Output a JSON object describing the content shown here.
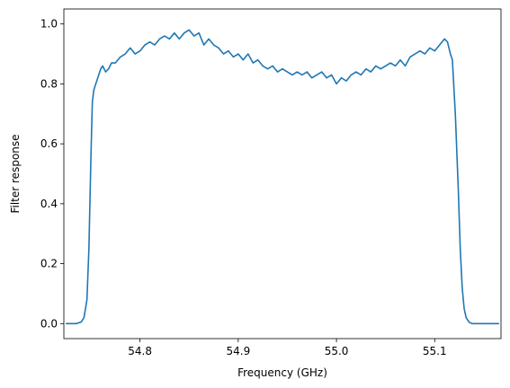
{
  "chart_data": {
    "type": "line",
    "title": "",
    "xlabel": "Frequency (GHz)",
    "ylabel": "Filter response",
    "xlim": [
      54.7225,
      55.1675
    ],
    "ylim": [
      -0.05,
      1.05
    ],
    "xticks": [
      54.8,
      54.9,
      55.0,
      55.1
    ],
    "xtick_labels": [
      "54.8",
      "54.9",
      "55.0",
      "55.1"
    ],
    "yticks": [
      0.0,
      0.2,
      0.4,
      0.6,
      0.8,
      1.0
    ],
    "ytick_labels": [
      "0.0",
      "0.2",
      "0.4",
      "0.6",
      "0.8",
      "1.0"
    ],
    "grid": false,
    "legend": "none",
    "series": [
      {
        "color": "#1f77b4",
        "x": [
          54.725,
          54.735,
          54.74,
          54.743,
          54.746,
          54.748,
          54.75,
          54.7515,
          54.753,
          54.755,
          54.757,
          54.76,
          54.762,
          54.765,
          54.768,
          54.771,
          54.775,
          54.78,
          54.785,
          54.79,
          54.795,
          54.8,
          54.805,
          54.81,
          54.815,
          54.82,
          54.825,
          54.83,
          54.835,
          54.84,
          54.845,
          54.85,
          54.855,
          54.86,
          54.865,
          54.87,
          54.875,
          54.88,
          54.885,
          54.89,
          54.895,
          54.9,
          54.905,
          54.91,
          54.915,
          54.92,
          54.925,
          54.93,
          54.935,
          54.94,
          54.945,
          54.95,
          54.955,
          54.96,
          54.965,
          54.97,
          54.975,
          54.98,
          54.985,
          54.99,
          54.995,
          55.0,
          55.005,
          55.01,
          55.015,
          55.02,
          55.025,
          55.03,
          55.035,
          55.04,
          55.045,
          55.05,
          55.055,
          55.06,
          55.065,
          55.07,
          55.075,
          55.08,
          55.085,
          55.09,
          55.095,
          55.1,
          55.105,
          55.11,
          55.113,
          55.116,
          55.118,
          55.121,
          55.124,
          55.126,
          55.128,
          55.13,
          55.132,
          55.135,
          55.138,
          55.142,
          55.146,
          55.15,
          55.155,
          55.165
        ],
        "y": [
          0.0,
          0.0,
          0.005,
          0.02,
          0.08,
          0.25,
          0.55,
          0.74,
          0.78,
          0.8,
          0.82,
          0.85,
          0.86,
          0.84,
          0.85,
          0.87,
          0.87,
          0.89,
          0.9,
          0.92,
          0.9,
          0.91,
          0.93,
          0.94,
          0.93,
          0.95,
          0.96,
          0.95,
          0.97,
          0.95,
          0.97,
          0.98,
          0.96,
          0.97,
          0.93,
          0.95,
          0.93,
          0.92,
          0.9,
          0.91,
          0.89,
          0.9,
          0.88,
          0.9,
          0.87,
          0.88,
          0.86,
          0.85,
          0.86,
          0.84,
          0.85,
          0.84,
          0.83,
          0.84,
          0.83,
          0.84,
          0.82,
          0.83,
          0.84,
          0.82,
          0.83,
          0.8,
          0.82,
          0.81,
          0.83,
          0.84,
          0.83,
          0.85,
          0.84,
          0.86,
          0.85,
          0.86,
          0.87,
          0.86,
          0.88,
          0.86,
          0.89,
          0.9,
          0.91,
          0.9,
          0.92,
          0.91,
          0.93,
          0.95,
          0.94,
          0.9,
          0.88,
          0.7,
          0.45,
          0.25,
          0.12,
          0.05,
          0.02,
          0.005,
          0.0,
          0.0,
          0.0,
          0.0,
          0.0,
          0.0
        ]
      }
    ]
  }
}
